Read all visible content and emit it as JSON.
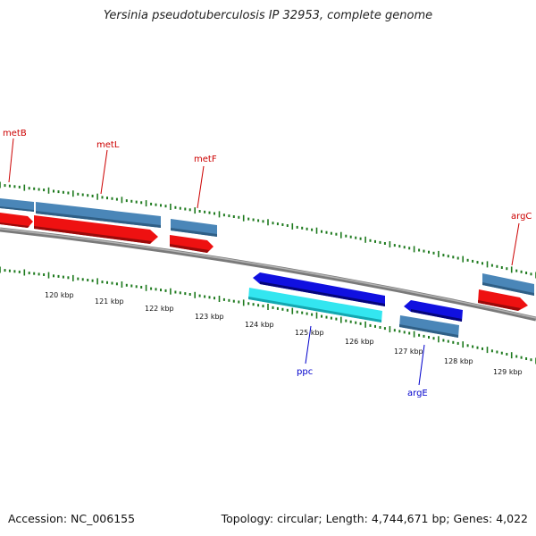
{
  "title": "Yersinia pseudotuberculosis IP 32953, complete genome",
  "footer": {
    "accession": "Accession: NC_006155",
    "summary": "Topology: circular; Length: 4,744,671 bp; Genes: 4,022"
  },
  "colors": {
    "backbone": "#8a8a8a",
    "ticks": "#1e7a1e",
    "feature_forward_cds": "#4a86b8",
    "feature_forward_arrow": "#ee1111",
    "feature_reverse_arrow": "#1010e0",
    "feature_reverse_gene": "#4a86b8",
    "feature_reverse_rna": "#33e6f0",
    "label_forward": "#cc0000",
    "label_reverse": "#0000cc"
  },
  "scale_labels": [
    "120 kbp",
    "121 kbp",
    "122 kbp",
    "123 kbp",
    "124 kbp",
    "125 kbp",
    "126 kbp",
    "127 kbp",
    "128 kbp",
    "129 kbp"
  ],
  "features": {
    "forward": [
      {
        "name": "metB",
        "type": "gene",
        "strand": "+"
      },
      {
        "name": "metL",
        "type": "gene",
        "strand": "+"
      },
      {
        "name": "metF",
        "type": "gene",
        "strand": "+"
      },
      {
        "name": "argC",
        "type": "gene",
        "strand": "+"
      }
    ],
    "reverse": [
      {
        "name": "ppc",
        "type": "gene",
        "strand": "-"
      },
      {
        "name": "argE",
        "type": "gene",
        "strand": "-"
      }
    ]
  }
}
